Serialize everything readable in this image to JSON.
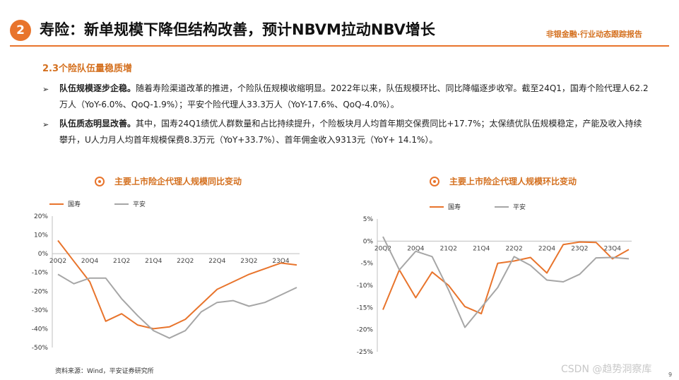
{
  "header": {
    "section_number": "2",
    "title": "寿险：新单规模下降但结构改善，预计NBVM拉动NBV增长",
    "brand": "非银金融·行业动态跟踪报告"
  },
  "subheading": "2.3个险队伍量稳质增",
  "bullets": [
    {
      "lead": "队伍规模逐步企稳。",
      "text": "随着寿险渠道改革的推进，个险队伍规模收缩明显。2022年以来，队伍规模环比、同比降幅逐步收窄。截至24Q1，国寿个险代理人62.2万人（YoY-6.0%、QoQ-1.9%）；平安个险代理人33.3万人（YoY-17.6%、QoQ-4.0%）。"
    },
    {
      "lead": "队伍质态明显改善。",
      "text": "其中，国寿24Q1绩优人群数量和占比持续提升，个险板块月人均首年期交保费同比+17.7%；太保绩优队伍规模稳定，产能及收入持续攀升，U人力月人均首年规模保费8.3万元（YoY+33.7%）、首年佣金收入9313元（YoY+ 14.1%）。"
    }
  ],
  "chart_data": [
    {
      "type": "line",
      "title": "主要上市险企代理人规模同比变动",
      "categories": [
        "20Q2",
        "20Q3",
        "20Q4",
        "21Q1",
        "21Q2",
        "21Q3",
        "21Q4",
        "22Q1",
        "22Q2",
        "22Q3",
        "22Q4",
        "23Q1",
        "23Q2",
        "23Q3",
        "23Q4",
        "24Q1"
      ],
      "x_tick_labels": [
        "20Q2",
        "20Q4",
        "21Q2",
        "21Q4",
        "22Q2",
        "22Q4",
        "23Q2",
        "23Q4"
      ],
      "y_ticks": [
        20,
        10,
        0,
        -10,
        -20,
        -30,
        -40,
        -50
      ],
      "y_tick_labels": [
        "20%",
        "10%",
        "0%",
        "-10%",
        "-20%",
        "-30%",
        "-40%",
        "-50%"
      ],
      "ylim": [
        -50,
        20
      ],
      "legend_position": "top-left",
      "series": [
        {
          "name": "国寿",
          "color": "#e8742c",
          "values": [
            7,
            -4,
            -15,
            -36,
            -32,
            -38,
            -40,
            -39,
            -35,
            -27,
            -19,
            -15,
            -11,
            -8,
            -5,
            -6
          ]
        },
        {
          "name": "平安",
          "color": "#a6a6a6",
          "values": [
            -11,
            -16,
            -13,
            -13,
            -24,
            -33,
            -41,
            -45,
            -41,
            -31,
            -26,
            -25,
            -28,
            -26,
            -22,
            -18
          ]
        }
      ]
    },
    {
      "type": "line",
      "title": "主要上市险企代理人规模环比变动",
      "categories": [
        "20Q2",
        "20Q3",
        "20Q4",
        "21Q1",
        "21Q2",
        "21Q3",
        "21Q4",
        "22Q1",
        "22Q2",
        "22Q3",
        "22Q4",
        "23Q1",
        "23Q2",
        "23Q3",
        "23Q4",
        "24Q1"
      ],
      "x_tick_labels": [
        "20Q2",
        "20Q4",
        "21Q2",
        "21Q4",
        "22Q2",
        "22Q4",
        "23Q2",
        "23Q4"
      ],
      "y_ticks": [
        5,
        0,
        -5,
        -10,
        -15,
        -20,
        -25
      ],
      "y_tick_labels": [
        "5%",
        "0%",
        "-5%",
        "-10%",
        "-15%",
        "-20%",
        "-25%"
      ],
      "ylim": [
        -25,
        5
      ],
      "legend_position": "top-left",
      "series": [
        {
          "name": "国寿",
          "color": "#e8742c",
          "values": [
            -15.5,
            -6.5,
            -12.8,
            -7,
            -10,
            -14.8,
            -16.4,
            -5,
            -4.5,
            -3.7,
            -7.2,
            -0.8,
            -0.2,
            -0.3,
            -4,
            -1.9
          ]
        },
        {
          "name": "平安",
          "color": "#a6a6a6",
          "values": [
            1,
            -6.5,
            -2.3,
            -3.5,
            -11,
            -19.5,
            -15,
            -10.5,
            -3.5,
            -5.5,
            -8.8,
            -9.2,
            -7.5,
            -3.8,
            -3.7,
            -4
          ]
        }
      ]
    }
  ],
  "footer": {
    "source": "资料来源：Wind，平安证券研究所",
    "page_number": "9",
    "watermark": "CSDN @趋势洞察库"
  }
}
